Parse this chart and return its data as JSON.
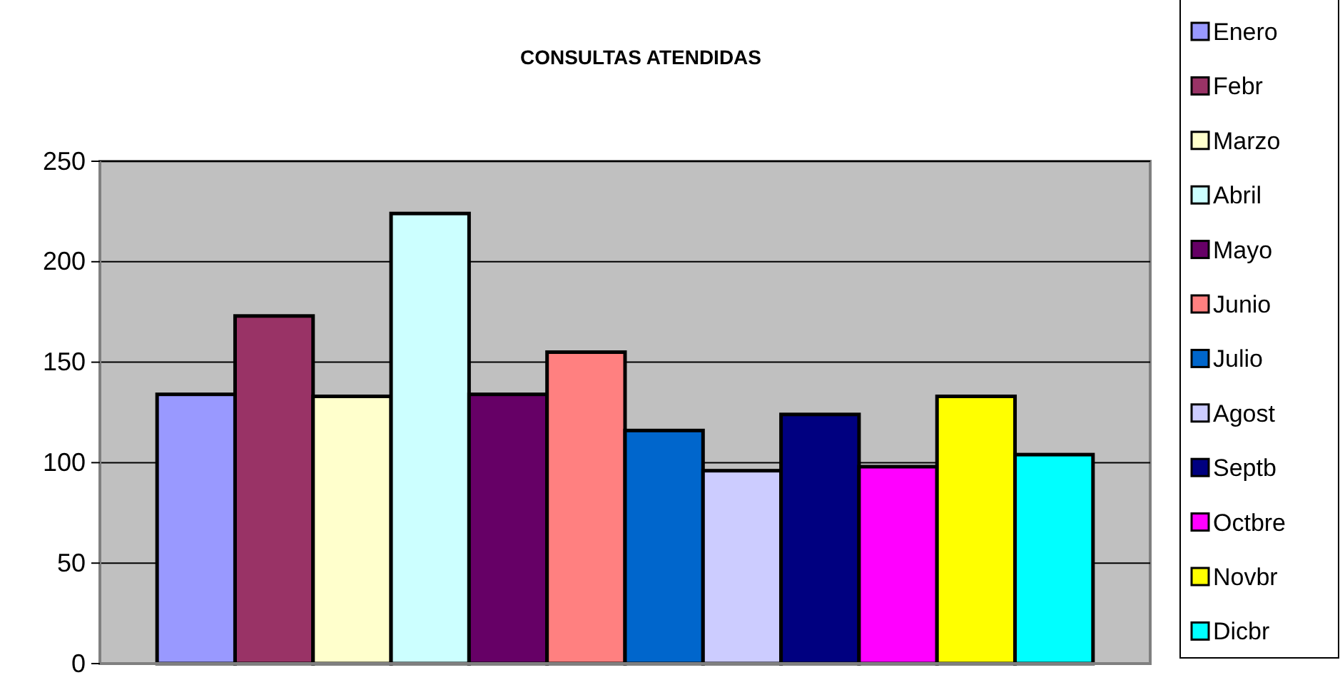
{
  "chart_data": {
    "type": "bar",
    "title": "CONSULTAS ATENDIDAS",
    "categories": [
      null
    ],
    "series": [
      {
        "name": "Enero",
        "color": "#9999ff",
        "values": [
          134
        ]
      },
      {
        "name": "Febr",
        "color": "#993366",
        "values": [
          173
        ]
      },
      {
        "name": "Marzo",
        "color": "#ffffcc",
        "values": [
          133
        ]
      },
      {
        "name": "Abril",
        "color": "#ccffff",
        "values": [
          224
        ]
      },
      {
        "name": "Mayo",
        "color": "#660066",
        "values": [
          134
        ]
      },
      {
        "name": "Junio",
        "color": "#ff8080",
        "values": [
          155
        ]
      },
      {
        "name": "Julio",
        "color": "#0066cc",
        "values": [
          116
        ]
      },
      {
        "name": "Agost",
        "color": "#ccccff",
        "values": [
          96
        ]
      },
      {
        "name": "Septb",
        "color": "#000080",
        "values": [
          124
        ]
      },
      {
        "name": "Octbre",
        "color": "#ff00ff",
        "values": [
          98
        ]
      },
      {
        "name": "Novbr",
        "color": "#ffff00",
        "values": [
          133
        ]
      },
      {
        "name": "Dicbr",
        "color": "#00ffff",
        "values": [
          104
        ]
      }
    ],
    "ylim": [
      0,
      250
    ],
    "yticks": [
      0,
      50,
      100,
      150,
      200,
      250
    ],
    "grid": "y",
    "legend": "right"
  }
}
